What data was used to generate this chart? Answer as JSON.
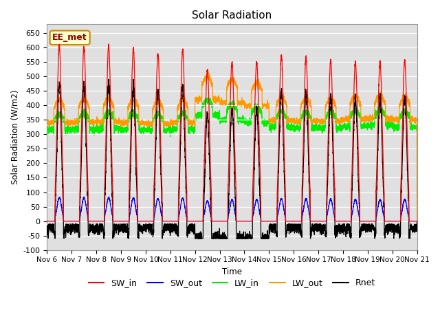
{
  "title": "Solar Radiation",
  "ylabel": "Solar Radiation (W/m2)",
  "xlabel": "Time",
  "ylim": [
    -100,
    680
  ],
  "yticks": [
    -100,
    -50,
    0,
    50,
    100,
    150,
    200,
    250,
    300,
    350,
    400,
    450,
    500,
    550,
    600,
    650
  ],
  "bg_color": "#e0e0e0",
  "fig_color": "#ffffff",
  "annotation_text": "EE_met",
  "annotation_bg": "#ffffcc",
  "annotation_border": "#cc8800",
  "series_colors": {
    "SW_in": "#ff0000",
    "SW_out": "#0000ff",
    "LW_in": "#00ee00",
    "LW_out": "#ff9900",
    "Rnet": "#000000"
  },
  "n_days": 15,
  "start_day": 6,
  "sw_peaks": [
    605,
    600,
    605,
    595,
    580,
    590,
    520,
    550,
    550,
    570,
    565,
    555,
    550,
    550,
    555
  ],
  "lw_in_base": [
    315,
    318,
    320,
    316,
    315,
    318,
    365,
    350,
    340,
    325,
    322,
    322,
    328,
    332,
    325
  ],
  "lw_out_base": [
    340,
    342,
    343,
    340,
    336,
    340,
    420,
    410,
    400,
    348,
    345,
    345,
    352,
    355,
    350
  ],
  "night_rnet": -32
}
